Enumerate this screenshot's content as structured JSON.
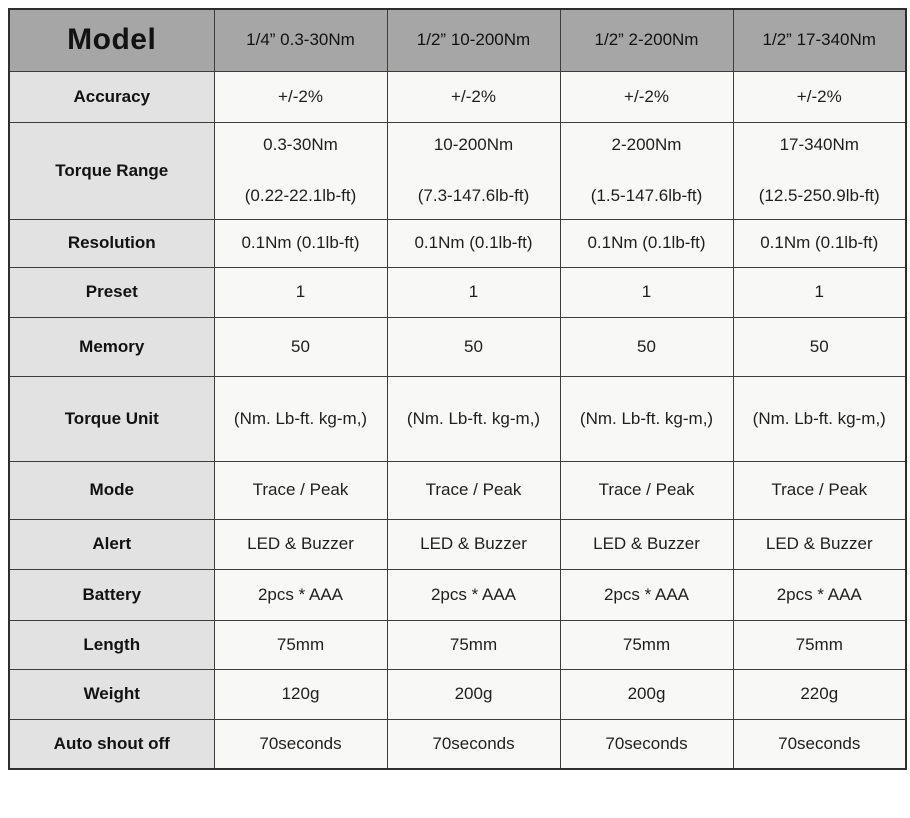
{
  "header": {
    "model_label": "Model",
    "columns": [
      "1/4” 0.3-30Nm",
      "1/2” 10-200Nm",
      "1/2” 2-200Nm",
      "1/2” 17-340Nm"
    ]
  },
  "rows": [
    {
      "label": "Accuracy",
      "values": [
        "+/-2%",
        "+/-2%",
        "+/-2%",
        "+/-2%"
      ]
    },
    {
      "label": "Torque Range",
      "line1": [
        "0.3-30Nm",
        "10-200Nm",
        "2-200Nm",
        "17-340Nm"
      ],
      "line2": [
        "(0.22-22.1lb-ft)",
        "(7.3-147.6lb-ft)",
        "(1.5-147.6lb-ft)",
        "(12.5-250.9lb-ft)"
      ]
    },
    {
      "label": "Resolution",
      "values": [
        "0.1Nm (0.1lb-ft)",
        "0.1Nm (0.1lb-ft)",
        "0.1Nm (0.1lb-ft)",
        "0.1Nm (0.1lb-ft)"
      ]
    },
    {
      "label": "Preset",
      "values": [
        "1",
        "1",
        "1",
        "1"
      ]
    },
    {
      "label": "Memory",
      "values": [
        "50",
        "50",
        "50",
        "50"
      ]
    },
    {
      "label": "Torque Unit",
      "values": [
        "(Nm. Lb-ft. kg-m,)",
        "(Nm. Lb-ft. kg-m,)",
        "(Nm. Lb-ft. kg-m,)",
        "(Nm. Lb-ft. kg-m,)"
      ]
    },
    {
      "label": "Mode",
      "values": [
        "Trace / Peak",
        "Trace / Peak",
        "Trace / Peak",
        "Trace / Peak"
      ]
    },
    {
      "label": "Alert",
      "values": [
        "LED & Buzzer",
        "LED & Buzzer",
        "LED & Buzzer",
        "LED & Buzzer"
      ]
    },
    {
      "label": "Battery",
      "values": [
        "2pcs * AAA",
        "2pcs * AAA",
        "2pcs * AAA",
        "2pcs * AAA"
      ]
    },
    {
      "label": "Length",
      "values": [
        "75mm",
        "75mm",
        "75mm",
        "75mm"
      ]
    },
    {
      "label": "Weight",
      "values": [
        "120g",
        "200g",
        "200g",
        "220g"
      ]
    },
    {
      "label": "Auto shout off",
      "values": [
        "70seconds",
        "70seconds",
        "70seconds",
        "70seconds"
      ]
    }
  ],
  "colors": {
    "header_bg": "#a6a6a6",
    "label_column_bg": "#e2e2e2",
    "value_cell_bg": "#f8f8f7",
    "border": "#3d3d3d",
    "text": "#1f1f1f"
  }
}
